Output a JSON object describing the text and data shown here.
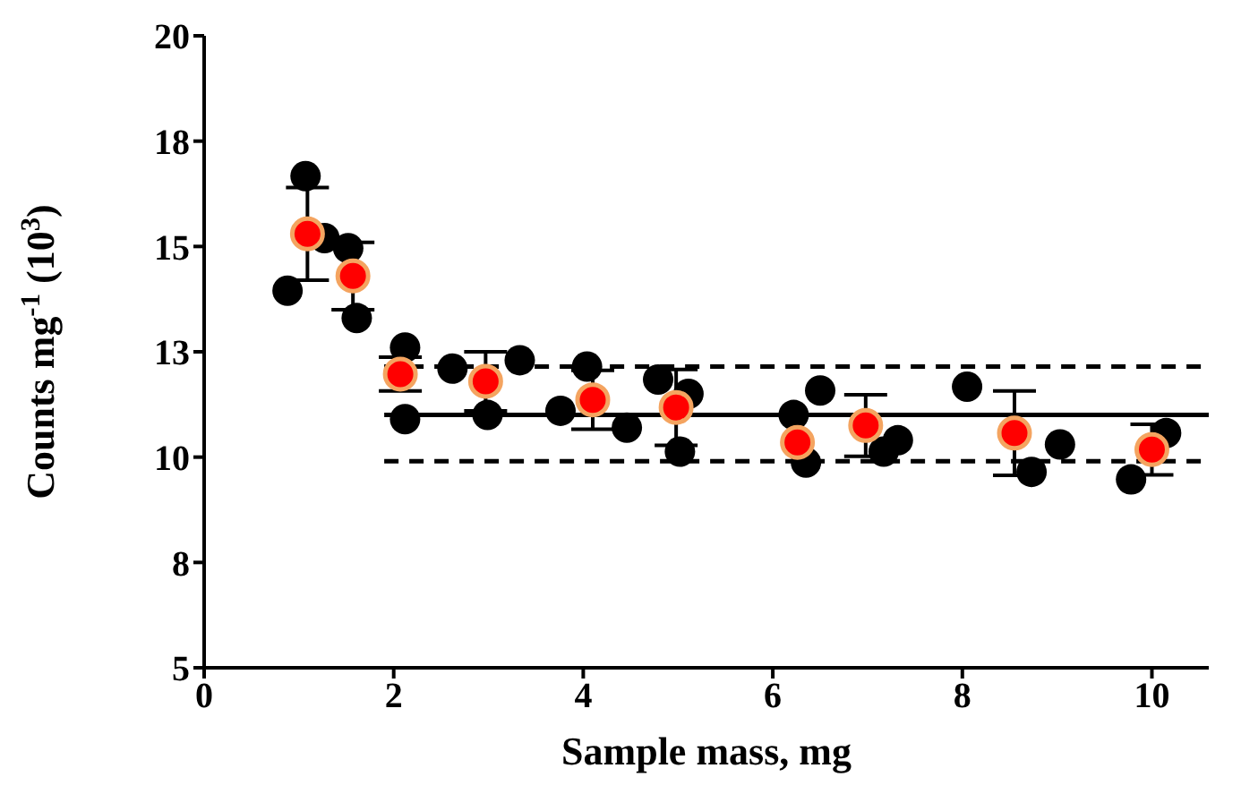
{
  "chart_data": {
    "type": "scatter",
    "xlabel": "Sample mass, mg",
    "ylabel": "Counts mg$^{-1}$ (10$^{3}$)",
    "xlim": [
      0,
      10.6
    ],
    "xticks": [
      0,
      2,
      4,
      6,
      8,
      10
    ],
    "ylim": [
      5,
      20
    ],
    "yticks": [
      5,
      {
        "value": 7.5,
        "label": "8"
      },
      10,
      {
        "value": 12.5,
        "label": "13"
      },
      15,
      {
        "value": 17.5,
        "label": "18"
      },
      20
    ],
    "marker": "circle",
    "series": [
      {
        "color": "#000000",
        "x": [
          0.88,
          1.07,
          1.27,
          1.52,
          1.61,
          2.12,
          2.12,
          2.62,
          2.99,
          3.33,
          3.76,
          4.04,
          4.46,
          4.79,
          5.11,
          5.02,
          6.22,
          6.5,
          6.35,
          7.32,
          7.17,
          8.05,
          8.73,
          9.03,
          9.78,
          10.15
        ],
        "values": [
          13.95,
          16.67,
          15.2,
          14.96,
          13.3,
          12.6,
          10.9,
          12.1,
          11.0,
          12.3,
          11.1,
          12.15,
          10.7,
          11.84,
          11.5,
          10.13,
          11.0,
          11.58,
          9.87,
          10.4,
          10.13,
          11.67,
          9.65,
          10.3,
          9.47,
          10.57
        ]
      },
      {
        "type": "line",
        "marker": "none",
        "color": "#000000",
        "line_style": "solid",
        "x": [
          1.9,
          10.6
        ],
        "values": [
          11.0,
          11.0
        ]
      },
      {
        "type": "line",
        "marker": "none",
        "color": "#000000",
        "line_style": "dashed",
        "x": [
          1.9,
          10.6
        ],
        "values": [
          12.15,
          12.15
        ]
      },
      {
        "type": "line",
        "marker": "none",
        "color": "#000000",
        "line_style": "dashed",
        "x": [
          1.9,
          10.6
        ],
        "values": [
          9.9,
          9.9
        ]
      },
      {
        "color": "#ff0000",
        "x": [
          1.09,
          1.57,
          2.07,
          2.97,
          4.1,
          4.98,
          6.26,
          6.98,
          8.55,
          10.0
        ],
        "values": [
          15.3,
          14.3,
          11.97,
          11.8,
          11.36,
          11.18,
          10.35,
          10.75,
          10.57,
          10.18
        ],
        "errors": [
          1.1,
          0.8,
          0.4,
          0.7,
          0.7,
          0.9,
          null,
          0.73,
          1.0,
          0.6
        ]
      }
    ]
  }
}
